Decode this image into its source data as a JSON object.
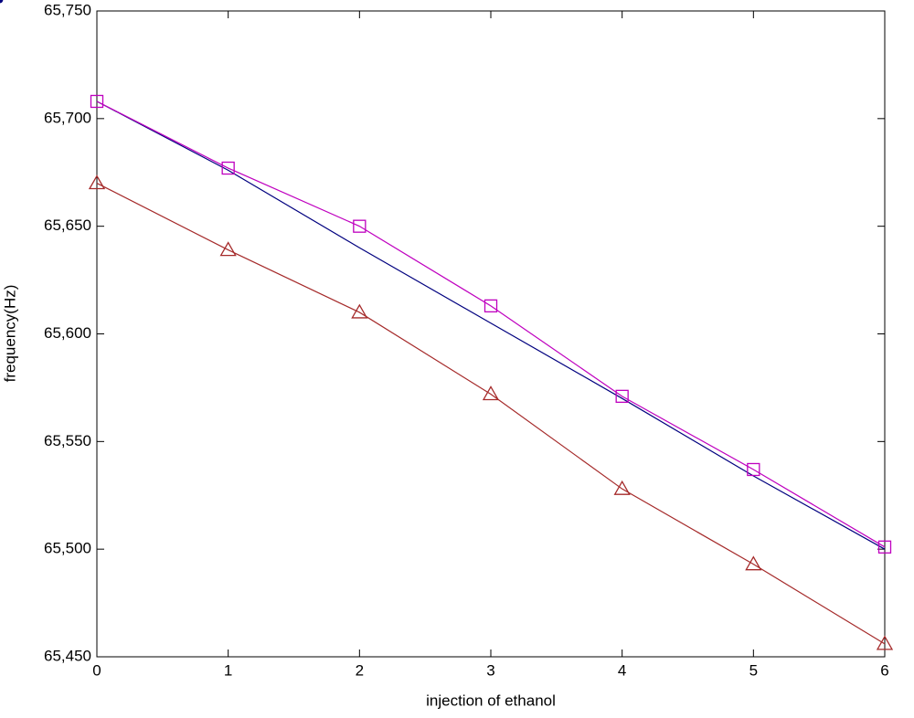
{
  "chart_data": {
    "type": "line",
    "x_label": "injection of ethanol",
    "y_label": "frequency(Hz)",
    "x": [
      0,
      1,
      2,
      3,
      4,
      5,
      6
    ],
    "xlim": [
      0,
      6
    ],
    "xticks": [
      0,
      1,
      2,
      3,
      4,
      5,
      6
    ],
    "ylim": [
      65450,
      65750
    ],
    "yticks": [
      {
        "value": 65450,
        "label": "65,450"
      },
      {
        "value": 65500,
        "label": "65,500"
      },
      {
        "value": 65550,
        "label": "65,550"
      },
      {
        "value": 65600,
        "label": "65,600"
      },
      {
        "value": 65650,
        "label": "65,650"
      },
      {
        "value": 65700,
        "label": "65,700"
      },
      {
        "value": 65750,
        "label": "65,750"
      }
    ],
    "grid": false,
    "series": [
      {
        "color": "#00007f",
        "marker": "dot",
        "values": [
          65708,
          65676,
          65640,
          65605,
          65570,
          65534,
          65500
        ]
      },
      {
        "color": "#bf00bf",
        "marker": "square",
        "values": [
          65708,
          65677,
          65650,
          65613,
          65571,
          65537,
          65501
        ]
      },
      {
        "color": "#a52a2a",
        "marker": "triangle",
        "values": [
          65670,
          65639,
          65610,
          65572,
          65528,
          65493,
          65456
        ]
      }
    ]
  }
}
